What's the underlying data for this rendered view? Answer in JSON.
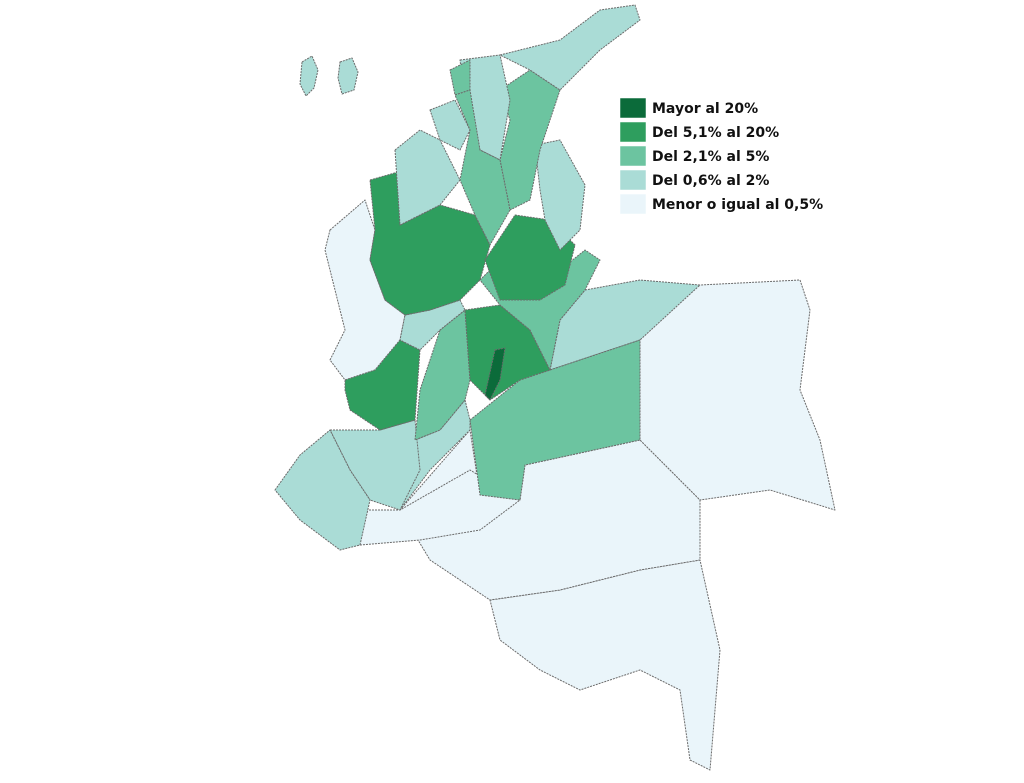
{
  "legend": {
    "items": [
      {
        "label": "Mayor al 20%",
        "color": "#0b6b3a"
      },
      {
        "label": "Del 5,1% al 20%",
        "color": "#2e9e5e"
      },
      {
        "label": "Del 2,1% al 5%",
        "color": "#6cc4a0"
      },
      {
        "label": "Del 0,6% al 2%",
        "color": "#aadcd6"
      },
      {
        "label": "Menor o igual al 0,5%",
        "color": "#eaf5fa"
      }
    ]
  }
}
